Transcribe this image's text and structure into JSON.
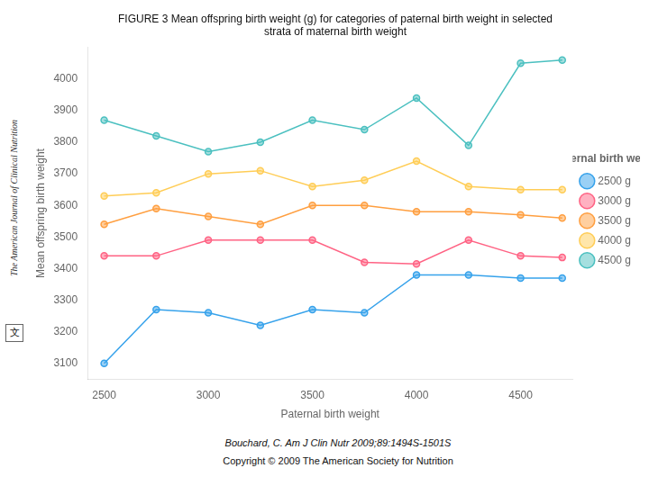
{
  "chart_data": {
    "type": "line",
    "title": [
      "FIGURE 3 Mean offspring birth weight (g) for categories of paternal birth weight in selected",
      "strata of maternal birth weight"
    ],
    "x_label": "Paternal birth weight",
    "y_label": "Mean offspring birth weight",
    "x": [
      2500,
      2750,
      3000,
      3250,
      3500,
      3750,
      4000,
      4250,
      4500,
      4700
    ],
    "series": [
      {
        "name": "2500 g",
        "values": [
          3100,
          3270,
          3260,
          3220,
          3270,
          3260,
          3380,
          3380,
          3370,
          3370
        ]
      },
      {
        "name": "3000 g",
        "values": [
          3440,
          3440,
          3490,
          3490,
          3490,
          3420,
          3415,
          3490,
          3440,
          3435
        ]
      },
      {
        "name": "3500 g",
        "values": [
          3540,
          3590,
          3565,
          3540,
          3600,
          3600,
          3580,
          3580,
          3570,
          3560
        ]
      },
      {
        "name": "4000 g",
        "values": [
          3630,
          3640,
          3700,
          3710,
          3660,
          3680,
          3740,
          3660,
          3650,
          3650
        ]
      },
      {
        "name": "4500 g",
        "values": [
          3870,
          3820,
          3770,
          3800,
          3870,
          3840,
          3940,
          3790,
          4050,
          4060
        ]
      }
    ],
    "xlim": [
      2420,
      4750
    ],
    "xticks": [
      2500,
      3000,
      3500,
      4000,
      4500
    ],
    "ylim": [
      3050,
      4100
    ],
    "yticks": [
      3100,
      3200,
      3300,
      3400,
      3500,
      3600,
      3700,
      3800,
      3900,
      4000
    ],
    "grid": false,
    "legend": "right",
    "legend_title": "Maternal birth weight",
    "marker": "circle",
    "line_style": "solid",
    "footnote": "Bouchard, C. Am J Clin Nutr 2009;89:1494S-1501S",
    "copyright": "Copyright © 2009 The American Society for Nutrition",
    "side_text": "The American Journal of Clinical Nutrition",
    "stamp": "文"
  }
}
